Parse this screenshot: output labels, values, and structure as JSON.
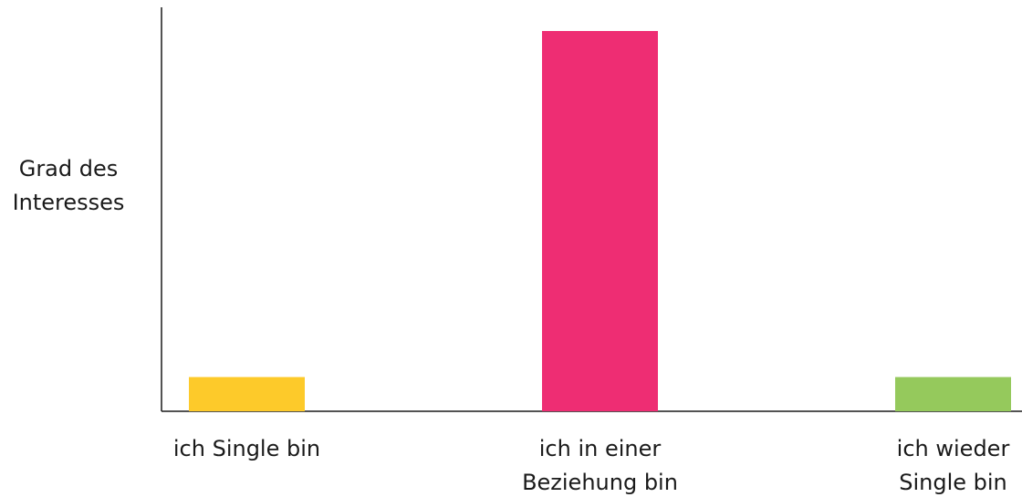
{
  "chart_data": {
    "type": "bar",
    "categories": [
      [
        "ich Single bin"
      ],
      [
        "ich in einer",
        "Beziehung bin"
      ],
      [
        "ich wieder",
        "Single bin"
      ]
    ],
    "values": [
      9,
      100,
      9
    ],
    "bar_colors": [
      "#FDCA2A",
      "#EE2D73",
      "#95C95C"
    ],
    "ylabel": [
      "Grad des",
      "Interesses"
    ],
    "xlabel": "",
    "title": "",
    "ylim": [
      0,
      110
    ],
    "grid": false,
    "legend": "none"
  }
}
